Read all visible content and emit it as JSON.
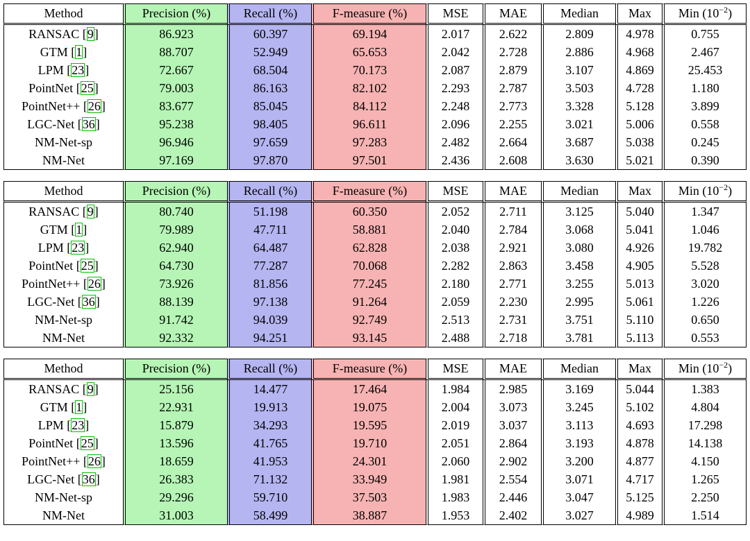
{
  "columns": [
    "Method",
    "Precision (%)",
    "Recall (%)",
    "F-measure (%)",
    "MSE",
    "MAE",
    "Median",
    "Max",
    "Min (10",
    "−2",
    ")"
  ],
  "tables": [
    {
      "rows": [
        {
          "name": "RANSAC",
          "ref": "9",
          "values": [
            "86.923",
            "60.397",
            "69.194",
            "2.017",
            "2.622",
            "2.809",
            "4.978",
            "0.755"
          ],
          "bold": [
            3,
            5
          ]
        },
        {
          "name": "GTM",
          "ref": "1",
          "values": [
            "88.707",
            "52.949",
            "65.653",
            "2.042",
            "2.728",
            "2.886",
            "4.968",
            "2.467"
          ],
          "bold": []
        },
        {
          "name": "LPM",
          "ref": "23",
          "values": [
            "72.667",
            "68.504",
            "70.173",
            "2.087",
            "2.879",
            "3.107",
            "4.869",
            "25.453"
          ],
          "bold": []
        },
        {
          "name": "PointNet",
          "ref": "25",
          "values": [
            "79.003",
            "86.163",
            "82.102",
            "2.293",
            "2.787",
            "3.503",
            "4.728",
            "1.180"
          ],
          "bold": [
            6
          ]
        },
        {
          "name": "PointNet++",
          "ref": "26",
          "values": [
            "83.677",
            "85.045",
            "84.112",
            "2.248",
            "2.773",
            "3.328",
            "5.128",
            "3.899"
          ],
          "bold": []
        },
        {
          "name": "LGC-Net",
          "ref": "36",
          "values": [
            "95.238",
            "98.405",
            "96.611",
            "2.096",
            "2.255",
            "3.021",
            "5.006",
            "0.558"
          ],
          "bold": [
            1,
            4
          ]
        },
        {
          "name": "NM-Net-sp",
          "ref": "",
          "values": [
            "96.946",
            "97.659",
            "97.283",
            "2.482",
            "2.664",
            "3.687",
            "5.038",
            "0.245"
          ],
          "bold": [
            7
          ]
        },
        {
          "name": "NM-Net",
          "ref": "",
          "values": [
            "97.169",
            "97.870",
            "97.501",
            "2.436",
            "2.608",
            "3.630",
            "5.021",
            "0.390"
          ],
          "bold": [
            0,
            2
          ]
        }
      ]
    },
    {
      "rows": [
        {
          "name": "RANSAC",
          "ref": "9",
          "values": [
            "80.740",
            "51.198",
            "60.350",
            "2.052",
            "2.711",
            "3.125",
            "5.040",
            "1.347"
          ],
          "bold": []
        },
        {
          "name": "GTM",
          "ref": "1",
          "values": [
            "79.989",
            "47.711",
            "58.881",
            "2.040",
            "2.784",
            "3.068",
            "5.041",
            "1.046"
          ],
          "bold": []
        },
        {
          "name": "LPM",
          "ref": "23",
          "values": [
            "62.940",
            "64.487",
            "62.828",
            "2.038",
            "2.921",
            "3.080",
            "4.926",
            "19.782"
          ],
          "bold": [
            3
          ]
        },
        {
          "name": "PointNet",
          "ref": "25",
          "values": [
            "64.730",
            "77.287",
            "70.068",
            "2.282",
            "2.863",
            "3.458",
            "4.905",
            "5.528"
          ],
          "bold": [
            6
          ]
        },
        {
          "name": "PointNet++",
          "ref": "26",
          "values": [
            "73.926",
            "81.856",
            "77.245",
            "2.180",
            "2.771",
            "3.255",
            "5.013",
            "3.020"
          ],
          "bold": []
        },
        {
          "name": "LGC-Net",
          "ref": "36",
          "values": [
            "88.139",
            "97.138",
            "91.264",
            "2.059",
            "2.230",
            "2.995",
            "5.061",
            "1.226"
          ],
          "bold": [
            1,
            4,
            5
          ]
        },
        {
          "name": "NM-Net-sp",
          "ref": "",
          "values": [
            "91.742",
            "94.039",
            "92.749",
            "2.513",
            "2.731",
            "3.751",
            "5.110",
            "0.650"
          ],
          "bold": []
        },
        {
          "name": "NM-Net",
          "ref": "",
          "values": [
            "92.332",
            "94.251",
            "93.145",
            "2.488",
            "2.718",
            "3.781",
            "5.113",
            "0.553"
          ],
          "bold": [
            0,
            2,
            7
          ]
        }
      ]
    },
    {
      "rows": [
        {
          "name": "RANSAC",
          "ref": "9",
          "values": [
            "25.156",
            "14.477",
            "17.464",
            "1.984",
            "2.985",
            "3.169",
            "5.044",
            "1.383"
          ],
          "bold": []
        },
        {
          "name": "GTM",
          "ref": "1",
          "values": [
            "22.931",
            "19.913",
            "19.075",
            "2.004",
            "3.073",
            "3.245",
            "5.102",
            "4.804"
          ],
          "bold": []
        },
        {
          "name": "LPM",
          "ref": "23",
          "values": [
            "15.879",
            "34.293",
            "19.595",
            "2.019",
            "3.037",
            "3.113",
            "4.693",
            "17.298"
          ],
          "bold": [
            6
          ]
        },
        {
          "name": "PointNet",
          "ref": "25",
          "values": [
            "13.596",
            "41.765",
            "19.710",
            "2.051",
            "2.864",
            "3.193",
            "4.878",
            "14.138"
          ],
          "bold": []
        },
        {
          "name": "PointNet++",
          "ref": "26",
          "values": [
            "18.659",
            "41.953",
            "24.301",
            "2.060",
            "2.902",
            "3.200",
            "4.877",
            "4.150"
          ],
          "bold": []
        },
        {
          "name": "LGC-Net",
          "ref": "36",
          "values": [
            "26.383",
            "71.132",
            "33.949",
            "1.981",
            "2.554",
            "3.071",
            "4.717",
            "1.265"
          ],
          "bold": [
            1,
            7
          ]
        },
        {
          "name": "NM-Net-sp",
          "ref": "",
          "values": [
            "29.296",
            "59.710",
            "37.503",
            "1.983",
            "2.446",
            "3.047",
            "5.125",
            "2.250"
          ],
          "bold": []
        },
        {
          "name": "NM-Net",
          "ref": "",
          "values": [
            "31.003",
            "58.499",
            "38.887",
            "1.953",
            "2.402",
            "3.027",
            "4.989",
            "1.514"
          ],
          "bold": [
            0,
            2,
            3,
            4,
            5
          ]
        }
      ]
    }
  ]
}
